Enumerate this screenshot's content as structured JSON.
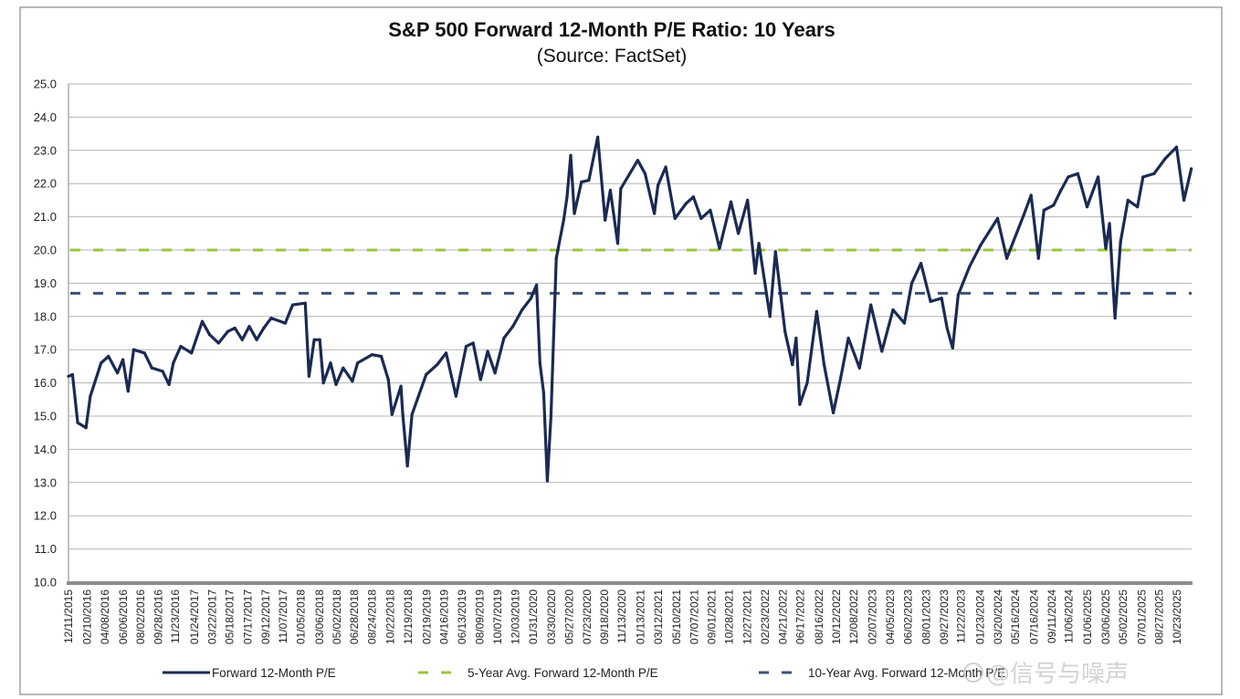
{
  "chart_data": {
    "type": "line",
    "title": "S&P 500 Forward 12-Month P/E Ratio: 10 Years",
    "subtitle": "(Source: FactSet)",
    "xlabel": "",
    "ylabel": "",
    "ylim": [
      10.0,
      25.0
    ],
    "yticks": [
      "10.0",
      "11.0",
      "12.0",
      "13.0",
      "14.0",
      "15.0",
      "16.0",
      "17.0",
      "18.0",
      "19.0",
      "20.0",
      "21.0",
      "22.0",
      "23.0",
      "24.0",
      "25.0"
    ],
    "xlim": [
      "2015-12-11",
      "2025-12-10"
    ],
    "xtick_labels": [
      "12/11/2015",
      "02/10/2016",
      "04/08/2016",
      "06/06/2016",
      "08/02/2016",
      "09/28/2016",
      "11/23/2016",
      "01/24/2017",
      "03/22/2017",
      "05/18/2017",
      "07/17/2017",
      "09/12/2017",
      "11/07/2017",
      "01/05/2018",
      "03/06/2018",
      "05/02/2018",
      "06/28/2018",
      "08/24/2018",
      "10/22/2018",
      "12/19/2018",
      "02/19/2019",
      "04/16/2019",
      "06/13/2019",
      "08/09/2019",
      "10/07/2019",
      "12/03/2019",
      "01/31/2020",
      "03/30/2020",
      "05/27/2020",
      "07/23/2020",
      "09/18/2020",
      "11/13/2020",
      "01/13/2021",
      "03/12/2021",
      "05/10/2021",
      "07/07/2021",
      "09/01/2021",
      "10/28/2021",
      "12/27/2021",
      "02/23/2022",
      "04/21/2022",
      "06/17/2022",
      "08/16/2022",
      "10/12/2022",
      "12/08/2022",
      "02/07/2023",
      "04/05/2023",
      "06/02/2023",
      "08/01/2023",
      "09/27/2023",
      "11/22/2023",
      "01/23/2024",
      "03/20/2024",
      "05/16/2024",
      "07/16/2024",
      "09/11/2024",
      "11/06/2024",
      "01/06/2025",
      "03/06/2025",
      "05/02/2025",
      "07/01/2025",
      "08/27/2025",
      "10/23/2025"
    ],
    "grid": "horizontal",
    "legend_placement": "bottom",
    "series": [
      {
        "name": "Forward 12-Month P/E",
        "color": "#1b2a52",
        "style": "solid",
        "points": [
          [
            "2015-12-11",
            16.2
          ],
          [
            "2015-12-24",
            16.25
          ],
          [
            "2016-01-10",
            14.8
          ],
          [
            "2016-02-06",
            14.65
          ],
          [
            "2016-02-20",
            15.6
          ],
          [
            "2016-03-26",
            16.6
          ],
          [
            "2016-04-19",
            16.8
          ],
          [
            "2016-05-18",
            16.3
          ],
          [
            "2016-06-05",
            16.7
          ],
          [
            "2016-06-22",
            15.75
          ],
          [
            "2016-07-10",
            17.0
          ],
          [
            "2016-08-14",
            16.9
          ],
          [
            "2016-09-07",
            16.45
          ],
          [
            "2016-10-12",
            16.35
          ],
          [
            "2016-11-02",
            15.95
          ],
          [
            "2016-11-16",
            16.6
          ],
          [
            "2016-12-10",
            17.1
          ],
          [
            "2017-01-14",
            16.9
          ],
          [
            "2017-02-18",
            17.85
          ],
          [
            "2017-03-14",
            17.45
          ],
          [
            "2017-04-12",
            17.2
          ],
          [
            "2017-05-12",
            17.55
          ],
          [
            "2017-06-04",
            17.65
          ],
          [
            "2017-06-28",
            17.3
          ],
          [
            "2017-07-21",
            17.7
          ],
          [
            "2017-08-14",
            17.3
          ],
          [
            "2017-09-06",
            17.65
          ],
          [
            "2017-09-30",
            17.95
          ],
          [
            "2017-11-15",
            17.8
          ],
          [
            "2017-12-09",
            18.35
          ],
          [
            "2018-01-19",
            18.4
          ],
          [
            "2018-01-31",
            16.2
          ],
          [
            "2018-02-17",
            17.3
          ],
          [
            "2018-03-07",
            17.3
          ],
          [
            "2018-03-19",
            16.0
          ],
          [
            "2018-04-11",
            16.6
          ],
          [
            "2018-04-29",
            15.95
          ],
          [
            "2018-05-22",
            16.45
          ],
          [
            "2018-06-21",
            16.05
          ],
          [
            "2018-07-08",
            16.6
          ],
          [
            "2018-08-24",
            16.85
          ],
          [
            "2018-09-23",
            16.8
          ],
          [
            "2018-10-16",
            16.1
          ],
          [
            "2018-10-28",
            15.05
          ],
          [
            "2018-11-26",
            15.9
          ],
          [
            "2018-12-02",
            15.05
          ],
          [
            "2018-12-17",
            13.5
          ],
          [
            "2019-01-01",
            15.05
          ],
          [
            "2019-02-16",
            16.25
          ],
          [
            "2019-03-24",
            16.55
          ],
          [
            "2019-04-22",
            16.9
          ],
          [
            "2019-05-24",
            15.6
          ],
          [
            "2019-06-26",
            17.1
          ],
          [
            "2019-07-19",
            17.2
          ],
          [
            "2019-08-12",
            16.1
          ],
          [
            "2019-09-04",
            16.95
          ],
          [
            "2019-09-28",
            16.3
          ],
          [
            "2019-10-27",
            17.35
          ],
          [
            "2019-11-25",
            17.7
          ],
          [
            "2019-12-25",
            18.2
          ],
          [
            "2020-01-23",
            18.55
          ],
          [
            "2020-02-10",
            18.95
          ],
          [
            "2020-02-21",
            16.6
          ],
          [
            "2020-03-04",
            15.7
          ],
          [
            "2020-03-16",
            13.05
          ],
          [
            "2020-03-28",
            15.0
          ],
          [
            "2020-04-14",
            19.75
          ],
          [
            "2020-05-08",
            20.9
          ],
          [
            "2020-05-19",
            21.6
          ],
          [
            "2020-05-31",
            22.85
          ],
          [
            "2020-06-12",
            21.1
          ],
          [
            "2020-07-05",
            22.05
          ],
          [
            "2020-07-29",
            22.1
          ],
          [
            "2020-08-27",
            23.4
          ],
          [
            "2020-09-20",
            20.9
          ],
          [
            "2020-10-07",
            21.8
          ],
          [
            "2020-10-31",
            20.2
          ],
          [
            "2020-11-10",
            21.85
          ],
          [
            "2021-01-04",
            22.7
          ],
          [
            "2021-01-28",
            22.3
          ],
          [
            "2021-02-27",
            21.1
          ],
          [
            "2021-03-11",
            21.95
          ],
          [
            "2021-04-05",
            22.5
          ],
          [
            "2021-05-05",
            20.95
          ],
          [
            "2021-06-10",
            21.4
          ],
          [
            "2021-07-04",
            21.6
          ],
          [
            "2021-07-29",
            20.95
          ],
          [
            "2021-08-28",
            21.2
          ],
          [
            "2021-09-27",
            20.05
          ],
          [
            "2021-11-03",
            21.45
          ],
          [
            "2021-11-27",
            20.5
          ],
          [
            "2021-12-27",
            21.5
          ],
          [
            "2022-01-21",
            19.3
          ],
          [
            "2022-02-02",
            20.2
          ],
          [
            "2022-03-10",
            18.0
          ],
          [
            "2022-03-28",
            19.95
          ],
          [
            "2022-04-28",
            17.55
          ],
          [
            "2022-05-22",
            16.55
          ],
          [
            "2022-06-03",
            17.35
          ],
          [
            "2022-06-15",
            15.35
          ],
          [
            "2022-07-09",
            16.0
          ],
          [
            "2022-08-09",
            18.15
          ],
          [
            "2022-09-02",
            16.55
          ],
          [
            "2022-10-02",
            15.1
          ],
          [
            "2022-10-26",
            16.15
          ],
          [
            "2022-11-20",
            17.35
          ],
          [
            "2022-12-26",
            16.45
          ],
          [
            "2023-02-01",
            18.35
          ],
          [
            "2023-03-09",
            16.95
          ],
          [
            "2023-04-14",
            18.2
          ],
          [
            "2023-05-21",
            17.8
          ],
          [
            "2023-06-14",
            19.0
          ],
          [
            "2023-07-14",
            19.6
          ],
          [
            "2023-08-14",
            18.45
          ],
          [
            "2023-09-19",
            18.55
          ],
          [
            "2023-10-07",
            17.65
          ],
          [
            "2023-10-25",
            17.05
          ],
          [
            "2023-11-12",
            18.65
          ],
          [
            "2023-12-19",
            19.5
          ],
          [
            "2024-01-24",
            20.15
          ],
          [
            "2024-03-19",
            20.95
          ],
          [
            "2024-04-18",
            19.75
          ],
          [
            "2024-06-12",
            21.05
          ],
          [
            "2024-07-06",
            21.65
          ],
          [
            "2024-07-30",
            19.75
          ],
          [
            "2024-08-17",
            21.2
          ],
          [
            "2024-09-17",
            21.35
          ],
          [
            "2024-10-11",
            21.8
          ],
          [
            "2024-11-04",
            22.2
          ],
          [
            "2024-12-05",
            22.3
          ],
          [
            "2025-01-04",
            21.3
          ],
          [
            "2025-02-09",
            22.2
          ],
          [
            "2025-03-06",
            20.05
          ],
          [
            "2025-03-18",
            20.8
          ],
          [
            "2025-04-05",
            17.95
          ],
          [
            "2025-04-23",
            20.25
          ],
          [
            "2025-05-17",
            21.5
          ],
          [
            "2025-06-17",
            21.3
          ],
          [
            "2025-07-05",
            22.2
          ],
          [
            "2025-08-10",
            22.3
          ],
          [
            "2025-09-15",
            22.75
          ],
          [
            "2025-10-22",
            23.1
          ],
          [
            "2025-11-15",
            21.5
          ],
          [
            "2025-12-09",
            22.45
          ]
        ]
      },
      {
        "name": "5-Year Avg. Forward 12-Month P/E",
        "color": "#9bc53d",
        "style": "dashed",
        "value": 20.0
      },
      {
        "name": "10-Year Avg. Forward 12-Month P/E",
        "color": "#3d5275",
        "style": "dashed",
        "value": 18.7
      }
    ]
  },
  "watermark": "@信号与噪声"
}
